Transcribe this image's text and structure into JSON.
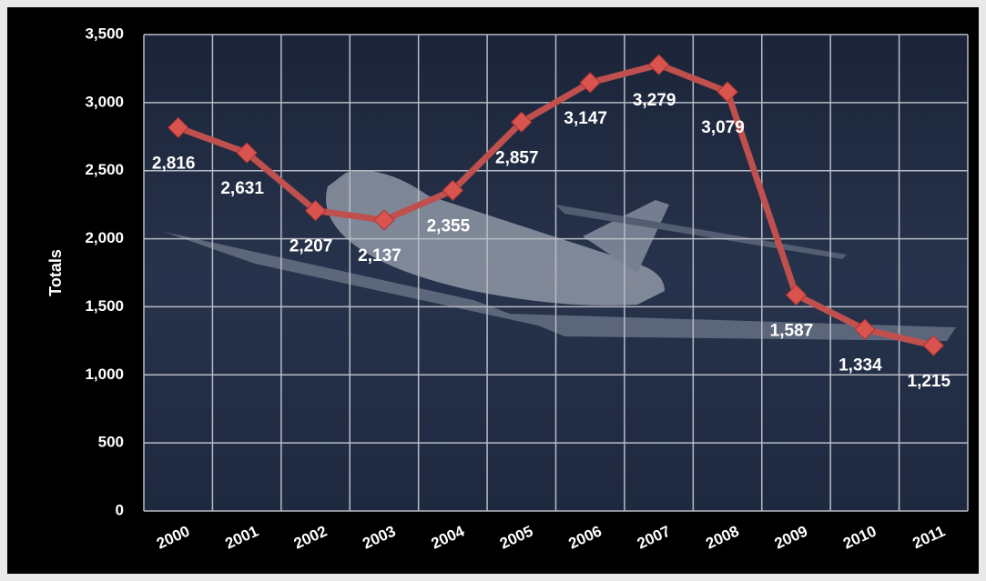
{
  "chart_data": {
    "type": "line",
    "y_label": "Totals",
    "categories": [
      "2000",
      "2001",
      "2002",
      "2003",
      "2004",
      "2005",
      "2006",
      "2007",
      "2008",
      "2009",
      "2010",
      "2011"
    ],
    "values": [
      2816,
      2631,
      2207,
      2137,
      2355,
      2857,
      3147,
      3279,
      3079,
      1587,
      1334,
      1215
    ],
    "value_labels": [
      "2,816",
      "2,631",
      "2,207",
      "2,137",
      "2,355",
      "2,857",
      "3,147",
      "3,279",
      "3,079",
      "1,587",
      "1,334",
      "1,215"
    ],
    "color": "#c0504d",
    "ylim": [
      0,
      3500
    ],
    "yticks": [
      0,
      500,
      {
        "value": 1000,
        "label": "1,000"
      },
      {
        "value": 1500,
        "label": "1,500"
      },
      {
        "value": 2000,
        "label": "2,000"
      },
      {
        "value": 2500,
        "label": "2,500"
      },
      {
        "value": 3000,
        "label": "3,000"
      },
      {
        "value": 3500,
        "label": "3,500"
      }
    ],
    "grid": true
  }
}
